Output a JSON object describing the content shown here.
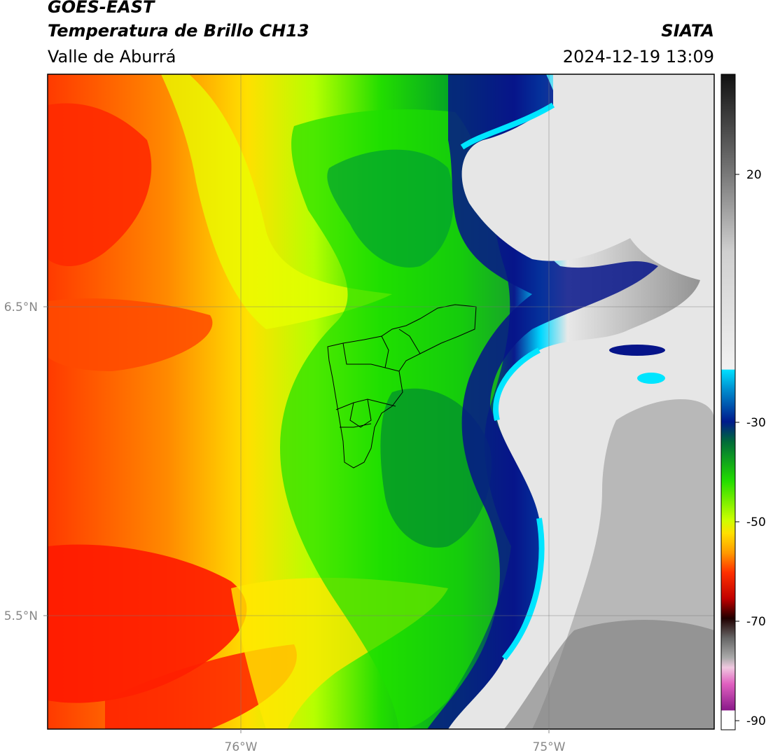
{
  "header": {
    "satellite": "GOES-EAST",
    "product": "Temperatura de Brillo CH13",
    "region": "Valle de Aburrá",
    "agency": "SIATA",
    "timestamp": "2024-12-19 13:09"
  },
  "map": {
    "lat_ticks": [
      "6.5°N",
      "5.5°N"
    ],
    "lon_ticks": [
      "76°W",
      "75°W"
    ],
    "palette": {
      "warm_red": "#ff2200",
      "orange": "#ff8c00",
      "yellow": "#ffff00",
      "green": "#22dd00",
      "dark_green": "#008a2a",
      "navy": "#001a8c",
      "cyan": "#00e5ff",
      "cloud_white": "#f0f0f0",
      "cloud_gray": "#8c8c8c"
    }
  },
  "colorbar": {
    "labels": [
      "20",
      "-30",
      "-50",
      "-70",
      "-90"
    ],
    "units_note": ""
  }
}
